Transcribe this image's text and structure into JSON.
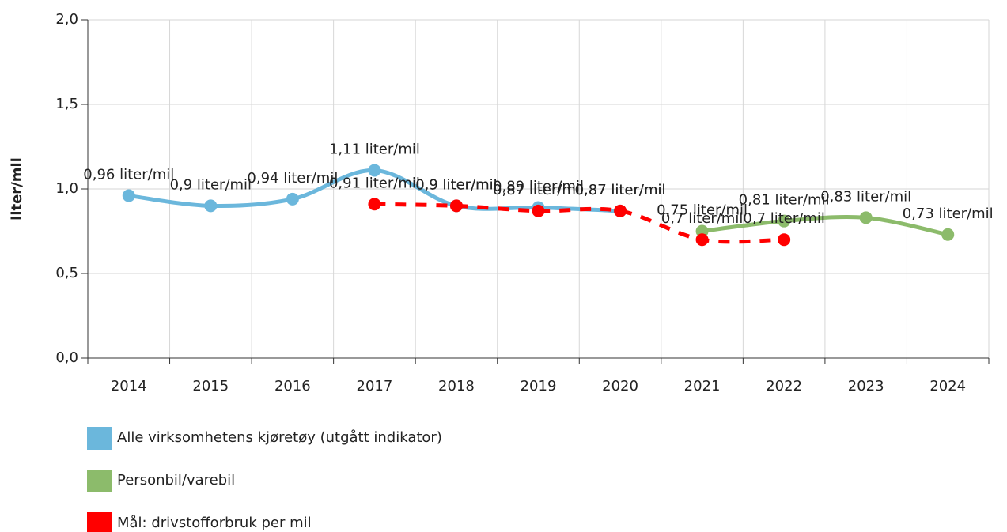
{
  "chart_data": {
    "type": "line",
    "ylabel": "liter/mil",
    "categories": [
      "2014",
      "2015",
      "2016",
      "2017",
      "2018",
      "2019",
      "2020",
      "2021",
      "2022",
      "2023",
      "2024"
    ],
    "series": [
      {
        "name": "Alle virksomhetens kjøretøy (utgått indikator)",
        "color": "#6bb7dc",
        "dashed": false,
        "values": [
          0.96,
          0.9,
          0.94,
          1.11,
          0.9,
          0.89,
          0.87,
          null,
          null,
          null,
          null
        ],
        "value_labels": [
          "0,96 liter/mil",
          "0,9 liter/mil",
          "0,94 liter/mil",
          "1,11 liter/mil",
          "0,9 liter/mil",
          "0,89 liter/mil",
          "0,87 liter/mil",
          null,
          null,
          null,
          null
        ]
      },
      {
        "name": "Personbil/varebil",
        "color": "#8cbb6b",
        "dashed": false,
        "values": [
          null,
          null,
          null,
          null,
          null,
          null,
          null,
          0.75,
          0.81,
          0.83,
          0.73
        ],
        "value_labels": [
          null,
          null,
          null,
          null,
          null,
          null,
          null,
          "0,75 liter/mil",
          "0,81 liter/mil",
          "0,83 liter/mil",
          "0,73 liter/mil"
        ]
      },
      {
        "name": "Mål: drivstofforbruk per mil",
        "color": "#ff0000",
        "dashed": true,
        "values": [
          null,
          null,
          null,
          0.91,
          0.9,
          0.87,
          0.87,
          0.7,
          0.7,
          null,
          null
        ],
        "value_labels": [
          null,
          null,
          null,
          "0,91 liter/mil",
          "0,9 liter/mil",
          "0,87 liter/mil",
          "0,87 liter/mil",
          "0,7 liter/mil",
          "0,7 liter/mil",
          null,
          null
        ]
      }
    ],
    "ylim": [
      0,
      2
    ],
    "yticks": [
      {
        "value": 0,
        "label": "0,0"
      },
      {
        "value": 0.5,
        "label": "0,5"
      },
      {
        "value": 1,
        "label": "1,0"
      },
      {
        "value": 1.5,
        "label": "1,5"
      },
      {
        "value": 2,
        "label": "2,0"
      }
    ],
    "grid": true
  }
}
